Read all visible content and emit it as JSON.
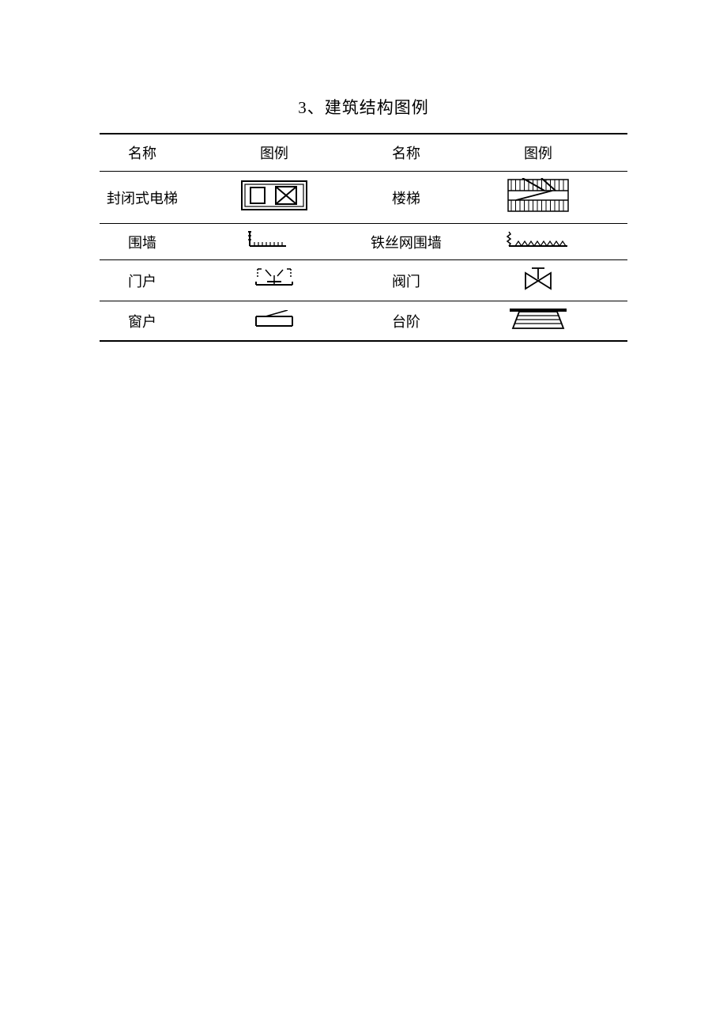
{
  "title": "3、建筑结构图例",
  "headers": {
    "name": "名称",
    "symbol": "图例"
  },
  "rows": [
    {
      "leftName": "封闭式电梯",
      "leftSymbol": "elevator",
      "rightName": "楼梯",
      "rightSymbol": "stairs",
      "tall": true
    },
    {
      "leftName": "围墙",
      "leftSymbol": "wall",
      "rightName": "铁丝网围墙",
      "rightSymbol": "wirewall",
      "tall": false
    },
    {
      "leftName": "门户",
      "leftSymbol": "door",
      "rightName": "阀门",
      "rightSymbol": "valve",
      "tall": false
    },
    {
      "leftName": "窗户",
      "leftSymbol": "window",
      "rightName": "台阶",
      "rightSymbol": "steps",
      "tall": false
    }
  ],
  "colors": {
    "line": "#000000",
    "bg": "#ffffff"
  }
}
